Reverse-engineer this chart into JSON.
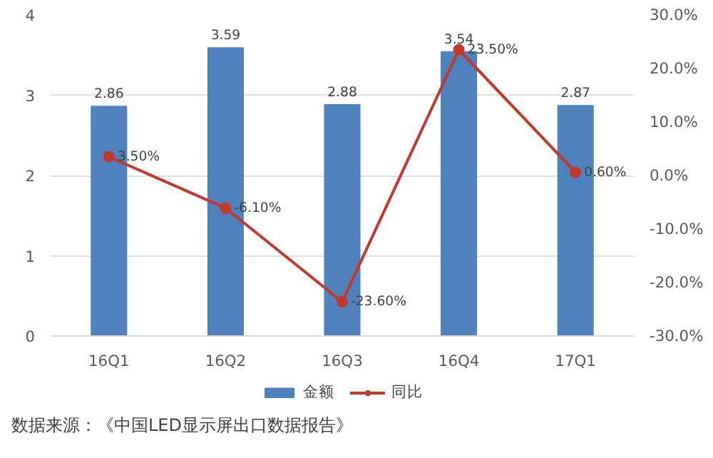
{
  "chart_data": {
    "type": "bar",
    "categories": [
      "16Q1",
      "16Q2",
      "16Q3",
      "16Q4",
      "17Q1"
    ],
    "series": [
      {
        "name": "金额",
        "color": "#4f81bd",
        "values": [
          2.86,
          3.59,
          2.88,
          3.54,
          2.87
        ],
        "data_labels": true
      },
      {
        "name": "同比",
        "type": "line",
        "axis": "y2",
        "color": "#c0392b",
        "marker": "circle",
        "values": [
          3.5,
          -6.1,
          -23.6,
          23.5,
          0.6
        ],
        "value_labels": [
          "3.50%",
          "-6.10%",
          "-23.60%",
          "23.50%",
          "0.60%"
        ]
      }
    ],
    "ylim": [
      0,
      4
    ],
    "yticks": [
      0,
      1,
      2,
      3,
      4
    ],
    "y2lim": [
      -30,
      30
    ],
    "y2ticks": [
      {
        "value": -30,
        "label": "-30.0%"
      },
      {
        "value": -20,
        "label": "-20.0%"
      },
      {
        "value": -10,
        "label": "-10.0%"
      },
      {
        "value": 0,
        "label": "0.0%"
      },
      {
        "value": 10,
        "label": "10.0%"
      },
      {
        "value": 20,
        "label": "20.0%"
      },
      {
        "value": 30,
        "label": "30.0%"
      }
    ],
    "grid": "y",
    "legend": "bottom",
    "annotations": [
      "数据来源：《中国LED显示屏出口数据报告》"
    ]
  }
}
